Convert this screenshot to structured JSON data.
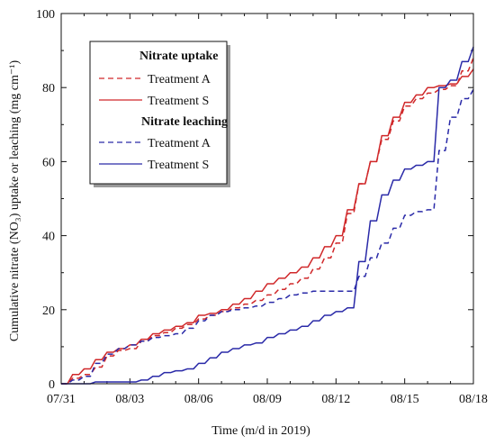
{
  "chart_data": {
    "type": "line",
    "xlabel": "Time (m/d in 2019)",
    "ylabel": "Cumulative nitrate (NO₃) uptake or leaching  (mg cm⁻¹)",
    "xlim": [
      0,
      18
    ],
    "ylim": [
      0,
      100
    ],
    "x_ticks": [
      0,
      3,
      6,
      9,
      12,
      15,
      18
    ],
    "x_tick_labels": [
      "07/31",
      "08/03",
      "08/06",
      "08/09",
      "08/12",
      "08/15",
      "08/18"
    ],
    "y_ticks": [
      0,
      20,
      40,
      60,
      80,
      100
    ],
    "y_tick_labels": [
      "0",
      "20",
      "40",
      "60",
      "80",
      "100"
    ],
    "x_unit": "days after 07/31/2019",
    "legend_position": "top-left",
    "legend_groups": [
      {
        "heading": "Nitrate uptake",
        "entries": [
          "Treatment A",
          "Treatment S"
        ]
      },
      {
        "heading": "Nitrate leaching",
        "entries": [
          "Treatment A",
          "Treatment S"
        ]
      }
    ],
    "series": [
      {
        "name": "Treatment A",
        "group": "Nitrate uptake",
        "color": "#d0282a",
        "dash": "dashed",
        "x": [
          0,
          0.5,
          1.0,
          1.5,
          2.0,
          2.5,
          3.0,
          3.5,
          4.0,
          4.5,
          5.0,
          5.5,
          6.0,
          6.5,
          7.0,
          7.5,
          8.0,
          8.5,
          9.0,
          9.5,
          10.0,
          10.5,
          11.0,
          11.5,
          12.0,
          12.5,
          13.0,
          13.5,
          14.0,
          14.5,
          15.0,
          15.5,
          16.0,
          16.5,
          17.0,
          17.5,
          18.0
        ],
        "values": [
          0,
          1.5,
          2.5,
          4.5,
          7.5,
          9.0,
          9.5,
          11.5,
          13.0,
          13.8,
          15.0,
          16.0,
          17.5,
          18.5,
          19.5,
          20.5,
          21.5,
          22.5,
          24.0,
          25.5,
          27.0,
          28.5,
          31.0,
          34.0,
          38.0,
          46.0,
          54.0,
          60.0,
          66.0,
          71.0,
          75.0,
          77.0,
          78.5,
          79.5,
          80.5,
          84.5,
          88.0
        ]
      },
      {
        "name": "Treatment S",
        "group": "Nitrate uptake",
        "color": "#d0282a",
        "dash": "solid",
        "x": [
          0,
          0.5,
          1.0,
          1.5,
          2.0,
          2.5,
          3.0,
          3.5,
          4.0,
          4.5,
          5.0,
          5.5,
          6.0,
          6.5,
          7.0,
          7.5,
          8.0,
          8.5,
          9.0,
          9.5,
          10.0,
          10.5,
          11.0,
          11.5,
          12.0,
          12.5,
          13.0,
          13.5,
          14.0,
          14.5,
          15.0,
          15.5,
          16.0,
          16.5,
          17.0,
          17.5,
          18.0
        ],
        "values": [
          0,
          2.5,
          4.0,
          6.5,
          8.5,
          9.5,
          10.5,
          12.0,
          13.5,
          14.5,
          15.5,
          16.5,
          18.5,
          19.0,
          20.0,
          21.5,
          23.0,
          25.0,
          27.0,
          28.5,
          30.0,
          31.5,
          34.0,
          37.0,
          40.0,
          47.0,
          54.0,
          60.0,
          67.0,
          72.0,
          76.0,
          78.0,
          80.0,
          80.5,
          81.0,
          83.0,
          85.0
        ]
      },
      {
        "name": "Treatment A",
        "group": "Nitrate leaching",
        "color": "#2a2aa8",
        "dash": "dashed",
        "x": [
          0,
          0.5,
          1.0,
          1.5,
          2.0,
          2.5,
          3.0,
          3.5,
          4.0,
          4.5,
          5.0,
          5.5,
          6.0,
          6.5,
          7.0,
          7.5,
          8.0,
          8.5,
          9.0,
          9.5,
          10.0,
          10.5,
          11.0,
          11.5,
          12.0,
          12.5,
          13.0,
          13.5,
          14.0,
          14.5,
          15.0,
          15.5,
          16.0,
          16.5,
          17.0,
          17.5,
          18.0
        ],
        "values": [
          0,
          1.0,
          2.0,
          5.5,
          8.0,
          9.5,
          10.5,
          11.5,
          12.5,
          13.0,
          13.5,
          15.0,
          17.0,
          18.5,
          19.5,
          20.0,
          20.5,
          21.0,
          22.0,
          23.0,
          24.0,
          24.5,
          25.0,
          25.0,
          25.0,
          25.0,
          29.0,
          34.0,
          38.0,
          42.0,
          45.5,
          46.5,
          47.0,
          63.0,
          72.0,
          77.0,
          79.5
        ]
      },
      {
        "name": "Treatment S",
        "group": "Nitrate leaching",
        "color": "#2a2aa8",
        "dash": "solid",
        "x": [
          0,
          0.5,
          1.0,
          1.5,
          2.0,
          2.5,
          3.0,
          3.5,
          4.0,
          4.5,
          5.0,
          5.5,
          6.0,
          6.5,
          7.0,
          7.5,
          8.0,
          8.5,
          9.0,
          9.5,
          10.0,
          10.5,
          11.0,
          11.5,
          12.0,
          12.5,
          13.0,
          13.5,
          14.0,
          14.5,
          15.0,
          15.5,
          16.0,
          16.5,
          17.0,
          17.5,
          18.0
        ],
        "values": [
          0,
          0,
          0,
          0.5,
          0.5,
          0.5,
          0.5,
          1.0,
          2.0,
          3.0,
          3.5,
          4.0,
          5.5,
          7.0,
          8.5,
          9.5,
          10.5,
          11.0,
          12.5,
          13.5,
          14.5,
          15.5,
          17.0,
          18.5,
          19.5,
          20.5,
          33.0,
          44.0,
          51.0,
          55.0,
          58.0,
          59.0,
          60.0,
          80.0,
          82.0,
          87.0,
          91.0
        ]
      }
    ]
  }
}
